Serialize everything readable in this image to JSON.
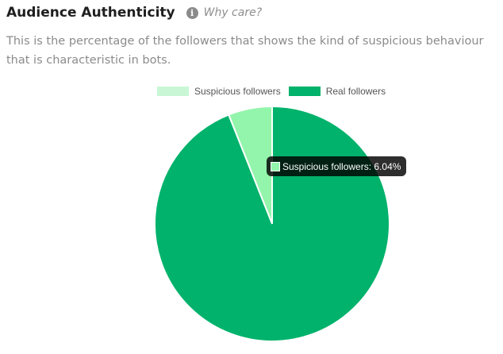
{
  "header": {
    "title": "Audience Authenticity",
    "info_icon": "info-circle-icon",
    "info_link_label": "Why care?",
    "description": "This is the percentage of the followers that shows the kind of suspicious behaviour that is characteristic in bots."
  },
  "chart_data": {
    "type": "pie",
    "legend_position": "top",
    "slices": [
      {
        "label": "Suspicious followers",
        "value": 6.04,
        "color": "#93f5ab"
      },
      {
        "label": "Real followers",
        "value": 93.96,
        "color": "#00b26b"
      }
    ],
    "tooltip": {
      "text": "Suspicious followers: 6.04%",
      "color": "#93f5ab"
    }
  },
  "colors": {
    "legend_suspicious": "#c9f7d6",
    "legend_real": "#00b26b"
  }
}
